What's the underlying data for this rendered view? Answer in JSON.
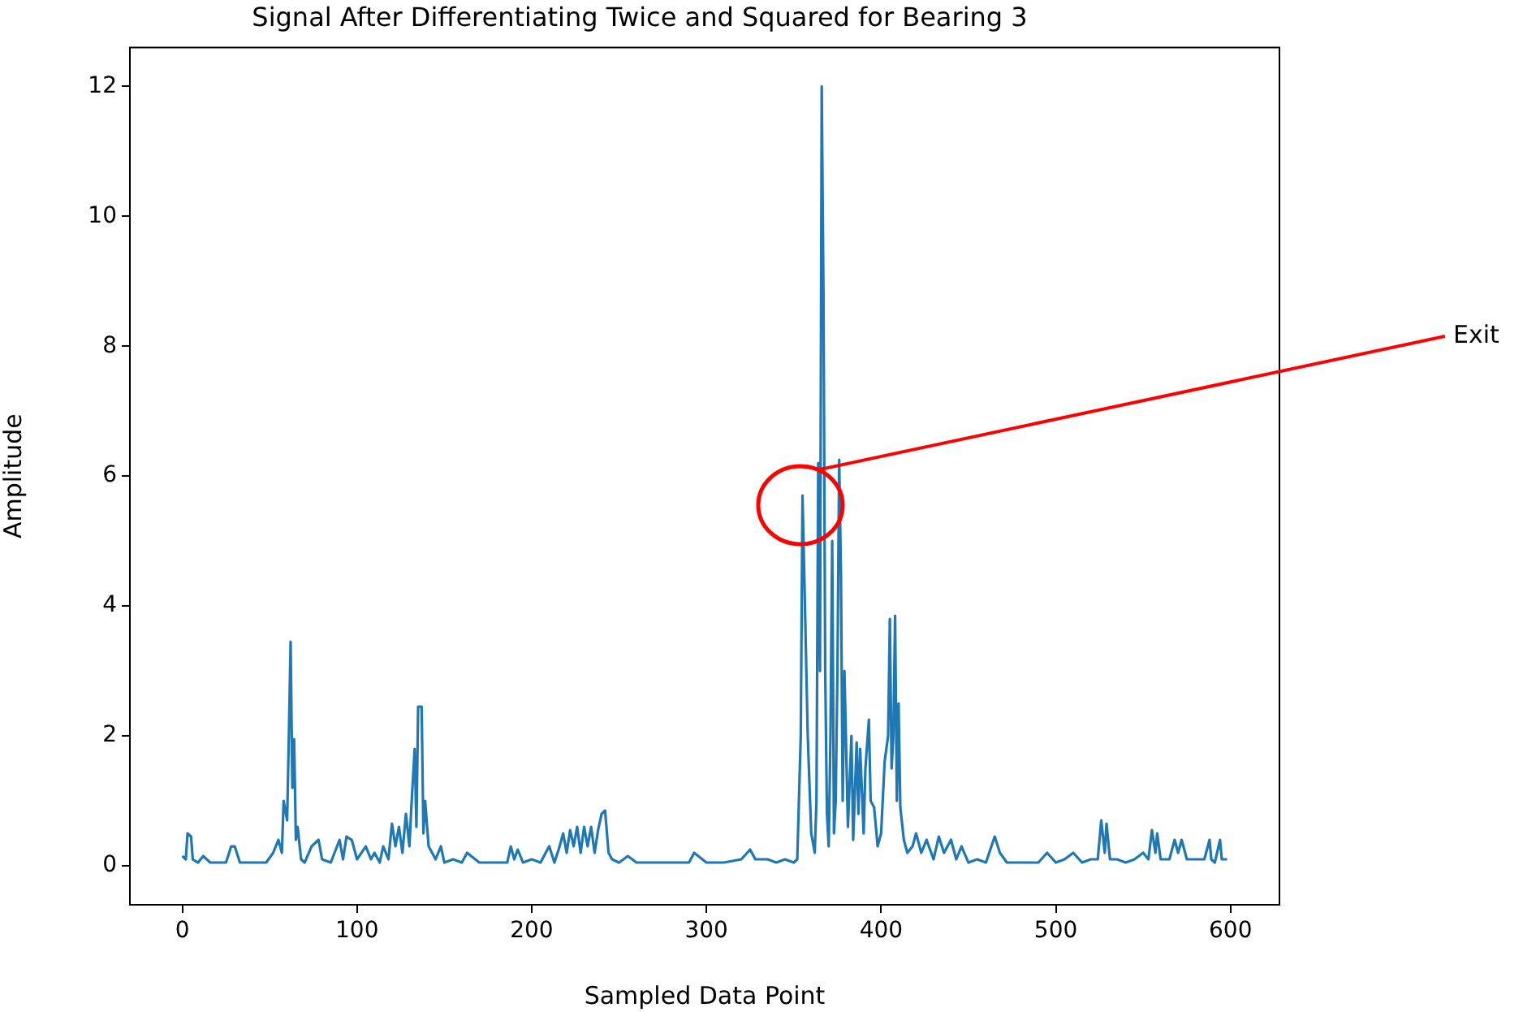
{
  "chart_data": {
    "type": "line",
    "title": "Signal After Differentiating Twice and Squared for Bearing 3",
    "xlabel": "Sampled Data Point",
    "ylabel": "Amplitude",
    "xlim": [
      -30,
      628
    ],
    "xticks": [
      0,
      100,
      200,
      300,
      400,
      500,
      600
    ],
    "ylim": [
      -0.6,
      12.6
    ],
    "yticks": [
      0,
      2,
      4,
      6,
      8,
      10,
      12
    ],
    "annotations": [
      "Exit"
    ],
    "series": [
      {
        "color": "#1f77b4",
        "x": [
          0,
          2,
          3,
          5,
          6,
          9,
          12,
          16,
          20,
          25,
          28,
          30,
          33,
          40,
          48,
          52,
          55,
          57,
          58,
          60,
          61,
          62,
          63,
          64,
          65,
          66,
          68,
          70,
          74,
          78,
          80,
          85,
          90,
          92,
          94,
          97,
          100,
          105,
          108,
          110,
          113,
          115,
          118,
          120,
          122,
          124,
          126,
          128,
          130,
          131,
          133,
          134,
          135,
          137,
          138,
          139,
          141,
          145,
          148,
          150,
          155,
          160,
          163,
          170,
          180,
          186,
          188,
          190,
          192,
          195,
          200,
          205,
          210,
          213,
          216,
          218,
          220,
          222,
          224,
          226,
          228,
          230,
          232,
          234,
          236,
          238,
          240,
          242,
          244,
          246,
          250,
          255,
          260,
          270,
          280,
          290,
          293,
          300,
          310,
          320,
          325,
          328,
          335,
          340,
          345,
          350,
          352,
          354,
          355,
          356,
          358,
          360,
          362,
          363,
          364,
          365,
          366,
          367,
          368,
          369,
          370,
          371,
          372,
          373,
          374,
          375,
          376,
          377,
          378,
          379,
          380,
          381,
          383,
          384,
          386,
          387,
          388,
          390,
          391,
          393,
          394,
          396,
          398,
          400,
          402,
          404,
          405,
          406,
          407,
          408,
          409,
          410,
          411,
          413,
          415,
          418,
          420,
          423,
          426,
          430,
          433,
          436,
          440,
          443,
          446,
          450,
          455,
          460,
          465,
          468,
          472,
          480,
          490,
          495,
          500,
          505,
          510,
          515,
          520,
          524,
          526,
          528,
          529,
          531,
          535,
          540,
          545,
          550,
          553,
          555,
          557,
          558,
          560,
          565,
          568,
          570,
          572,
          575,
          580,
          585,
          588,
          589,
          591,
          594,
          595,
          597,
          598
        ],
        "values": [
          0.15,
          0.1,
          0.5,
          0.45,
          0.1,
          0.05,
          0.15,
          0.05,
          0.05,
          0.05,
          0.3,
          0.3,
          0.05,
          0.05,
          0.05,
          0.2,
          0.4,
          0.2,
          1.0,
          0.7,
          2.0,
          3.45,
          1.2,
          1.95,
          0.4,
          0.6,
          0.1,
          0.05,
          0.3,
          0.4,
          0.1,
          0.05,
          0.4,
          0.1,
          0.45,
          0.4,
          0.1,
          0.3,
          0.1,
          0.2,
          0.05,
          0.3,
          0.1,
          0.65,
          0.3,
          0.6,
          0.2,
          0.8,
          0.3,
          0.85,
          1.8,
          0.6,
          2.45,
          2.45,
          0.5,
          1.0,
          0.3,
          0.1,
          0.3,
          0.05,
          0.1,
          0.05,
          0.2,
          0.05,
          0.05,
          0.05,
          0.3,
          0.1,
          0.25,
          0.05,
          0.1,
          0.05,
          0.3,
          0.05,
          0.3,
          0.5,
          0.2,
          0.55,
          0.3,
          0.6,
          0.2,
          0.6,
          0.3,
          0.6,
          0.2,
          0.55,
          0.8,
          0.85,
          0.2,
          0.1,
          0.05,
          0.15,
          0.05,
          0.05,
          0.05,
          0.05,
          0.2,
          0.05,
          0.05,
          0.1,
          0.25,
          0.1,
          0.1,
          0.05,
          0.1,
          0.05,
          0.1,
          2.0,
          5.7,
          4.5,
          2.0,
          0.5,
          0.2,
          1.0,
          6.2,
          3.0,
          12.0,
          8.8,
          3.0,
          0.8,
          0.3,
          2.0,
          5.0,
          0.5,
          1.0,
          3.0,
          6.25,
          4.5,
          1.0,
          3.0,
          1.8,
          0.6,
          2.0,
          0.4,
          1.9,
          0.8,
          1.8,
          0.5,
          1.5,
          2.25,
          1.0,
          0.9,
          0.3,
          0.5,
          1.6,
          2.0,
          3.8,
          1.5,
          2.0,
          3.85,
          1.0,
          2.5,
          0.9,
          0.4,
          0.2,
          0.3,
          0.5,
          0.2,
          0.4,
          0.1,
          0.45,
          0.2,
          0.4,
          0.1,
          0.3,
          0.05,
          0.1,
          0.05,
          0.45,
          0.2,
          0.05,
          0.05,
          0.05,
          0.2,
          0.05,
          0.1,
          0.2,
          0.05,
          0.1,
          0.1,
          0.7,
          0.2,
          0.65,
          0.1,
          0.1,
          0.05,
          0.1,
          0.2,
          0.1,
          0.55,
          0.2,
          0.5,
          0.1,
          0.1,
          0.4,
          0.2,
          0.4,
          0.1,
          0.1,
          0.1,
          0.4,
          0.1,
          0.05,
          0.4,
          0.1,
          0.1,
          0.1
        ]
      }
    ]
  }
}
